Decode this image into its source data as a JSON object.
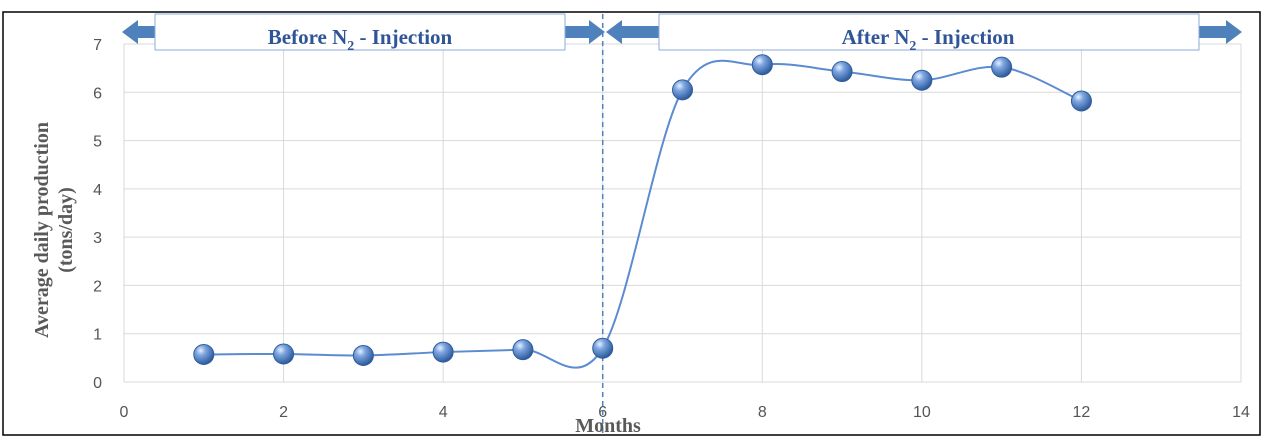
{
  "chart_data": {
    "type": "scatter",
    "x": [
      1,
      2,
      3,
      4,
      5,
      6,
      7,
      8,
      9,
      10,
      11,
      12
    ],
    "y": [
      0.57,
      0.58,
      0.55,
      0.62,
      0.67,
      0.7,
      6.05,
      6.57,
      6.43,
      6.25,
      6.52,
      5.82
    ],
    "xlim": [
      0,
      14
    ],
    "ylim": [
      0,
      7
    ],
    "xticks": [
      0,
      2,
      4,
      6,
      8,
      10,
      12,
      14
    ],
    "yticks": [
      0,
      1,
      2,
      3,
      4,
      5,
      6,
      7
    ],
    "xlabel": "Months",
    "ylabel_line1": "Average daily production",
    "ylabel_line2": "(tons/day)",
    "grid": true,
    "smooth_line": true,
    "marker_color": "#4A7CC4",
    "line_color": "#5B8BD0",
    "divider_x": 6,
    "annotations": {
      "before": {
        "prefix": "Before N",
        "subscript": "2",
        "suffix": " - Injection"
      },
      "after": {
        "prefix": "After N",
        "subscript": "2",
        "suffix": " - Injection"
      }
    },
    "arrow_color": "#4F81BD"
  }
}
